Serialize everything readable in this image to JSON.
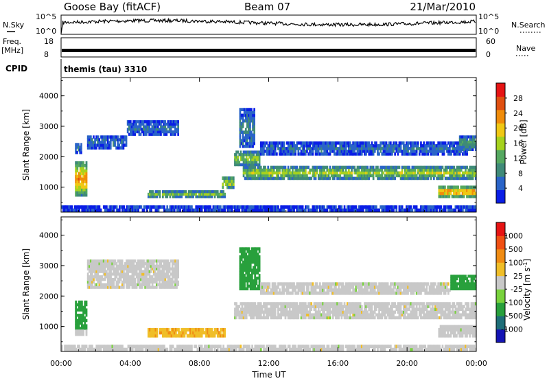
{
  "header": {
    "site": "Goose Bay (fitACF)",
    "beam": "Beam 07",
    "date": "21/Mar/2010"
  },
  "status_panels": {
    "nsky_label": "N.Sky",
    "nsky_ticks": [
      "10^5",
      "10^0"
    ],
    "nsearch_label": "N.Search",
    "nsearch_ticks": [
      "10^5",
      "10^0"
    ],
    "freq_label": "Freq.",
    "freq_unit": "[MHz]",
    "freq_ticks": [
      "18",
      "8"
    ],
    "nave_label": "Nave",
    "nave_ticks": [
      "60",
      "0"
    ],
    "cpid_label": "CPID",
    "cpid_value": "themis (tau) 3310"
  },
  "x_axis": {
    "label": "Time UT",
    "ticks": [
      "00:00",
      "04:00",
      "08:00",
      "12:00",
      "16:00",
      "20:00",
      "00:00"
    ],
    "range_hours": [
      0,
      24
    ]
  },
  "chart_data": [
    {
      "type": "heatmap",
      "title": "",
      "ylabel": "Slant Range [km]",
      "xlabel": "",
      "y_ticks": [
        "1000",
        "2000",
        "3000",
        "4000"
      ],
      "ylim": [
        180,
        4600
      ],
      "colorbar": {
        "label": "Power [dB]",
        "ticks": [
          "4",
          "8",
          "12",
          "16",
          "20",
          "24",
          "28"
        ],
        "range": [
          0,
          30
        ],
        "colors": [
          "#0a1ee6",
          "#2a64c8",
          "#3f8a78",
          "#55a860",
          "#a6d21e",
          "#f0c814",
          "#f08c0a",
          "#e05010",
          "#e61414"
        ]
      },
      "echo_regions": [
        {
          "t0": 0.8,
          "t1": 1.5,
          "r0": 700,
          "r1": 1850,
          "level": 0.7
        },
        {
          "t0": 0.8,
          "t1": 1.2,
          "r0": 2100,
          "r1": 2450,
          "level": 0.2
        },
        {
          "t0": 1.5,
          "t1": 3.8,
          "r0": 2250,
          "r1": 2700,
          "level": 0.15
        },
        {
          "t0": 3.8,
          "t1": 6.8,
          "r0": 2700,
          "r1": 3200,
          "level": 0.15
        },
        {
          "t0": 5.0,
          "t1": 9.5,
          "r0": 650,
          "r1": 900,
          "level": 0.45
        },
        {
          "t0": 9.3,
          "t1": 10.0,
          "r0": 950,
          "r1": 1350,
          "level": 0.6
        },
        {
          "t0": 10.0,
          "t1": 11.5,
          "r0": 1700,
          "r1": 2200,
          "level": 0.45
        },
        {
          "t0": 10.3,
          "t1": 11.2,
          "r0": 2300,
          "r1": 3600,
          "level": 0.2
        },
        {
          "t0": 10.5,
          "t1": 24.0,
          "r0": 1250,
          "r1": 1700,
          "level": 0.5
        },
        {
          "t0": 11.5,
          "t1": 23.5,
          "r0": 2050,
          "r1": 2500,
          "level": 0.15
        },
        {
          "t0": 21.8,
          "t1": 24.0,
          "r0": 650,
          "r1": 1050,
          "level": 0.8
        },
        {
          "t0": 23.0,
          "t1": 24.0,
          "r0": 2200,
          "r1": 2700,
          "level": 0.3
        },
        {
          "t0": 0.0,
          "t1": 24.0,
          "r0": 200,
          "r1": 400,
          "level": 0.1
        }
      ]
    },
    {
      "type": "heatmap",
      "title": "",
      "ylabel": "Slant Range [km]",
      "xlabel": "Time UT",
      "y_ticks": [
        "1000",
        "2000",
        "3000",
        "4000"
      ],
      "ylim": [
        180,
        4600
      ],
      "colorbar": {
        "label": "Velocity [m s^-1]",
        "ticks": [
          "1000",
          "500",
          "100",
          "25",
          "-25",
          "-100",
          "-500",
          "-1000"
        ],
        "range": [
          -1000,
          1000
        ],
        "colors": [
          "#1414b4",
          "#1e6e78",
          "#28a03c",
          "#78d23c",
          "#c8c8c8",
          "#f0be28",
          "#f08c14",
          "#f05014",
          "#e61414"
        ]
      },
      "echo_regions": [
        {
          "t0": 0.8,
          "t1": 1.5,
          "r0": 900,
          "r1": 1850,
          "level": "positive"
        },
        {
          "t0": 0.8,
          "t1": 1.5,
          "r0": 700,
          "r1": 900,
          "level": "near-zero"
        },
        {
          "t0": 1.5,
          "t1": 6.8,
          "r0": 2250,
          "r1": 3200,
          "level": "near-zero"
        },
        {
          "t0": 5.0,
          "t1": 9.5,
          "r0": 650,
          "r1": 950,
          "level": "negative"
        },
        {
          "t0": 10.0,
          "t1": 24.0,
          "r0": 1250,
          "r1": 1800,
          "level": "near-zero"
        },
        {
          "t0": 10.3,
          "t1": 11.5,
          "r0": 2200,
          "r1": 3600,
          "level": "positive"
        },
        {
          "t0": 11.5,
          "t1": 22.5,
          "r0": 2050,
          "r1": 2450,
          "level": "near-zero"
        },
        {
          "t0": 22.5,
          "t1": 24.0,
          "r0": 2200,
          "r1": 2700,
          "level": "positive"
        },
        {
          "t0": 21.8,
          "t1": 24.0,
          "r0": 650,
          "r1": 1050,
          "level": "near-zero"
        },
        {
          "t0": 0.0,
          "t1": 24.0,
          "r0": 200,
          "r1": 400,
          "level": "near-zero"
        }
      ]
    }
  ]
}
